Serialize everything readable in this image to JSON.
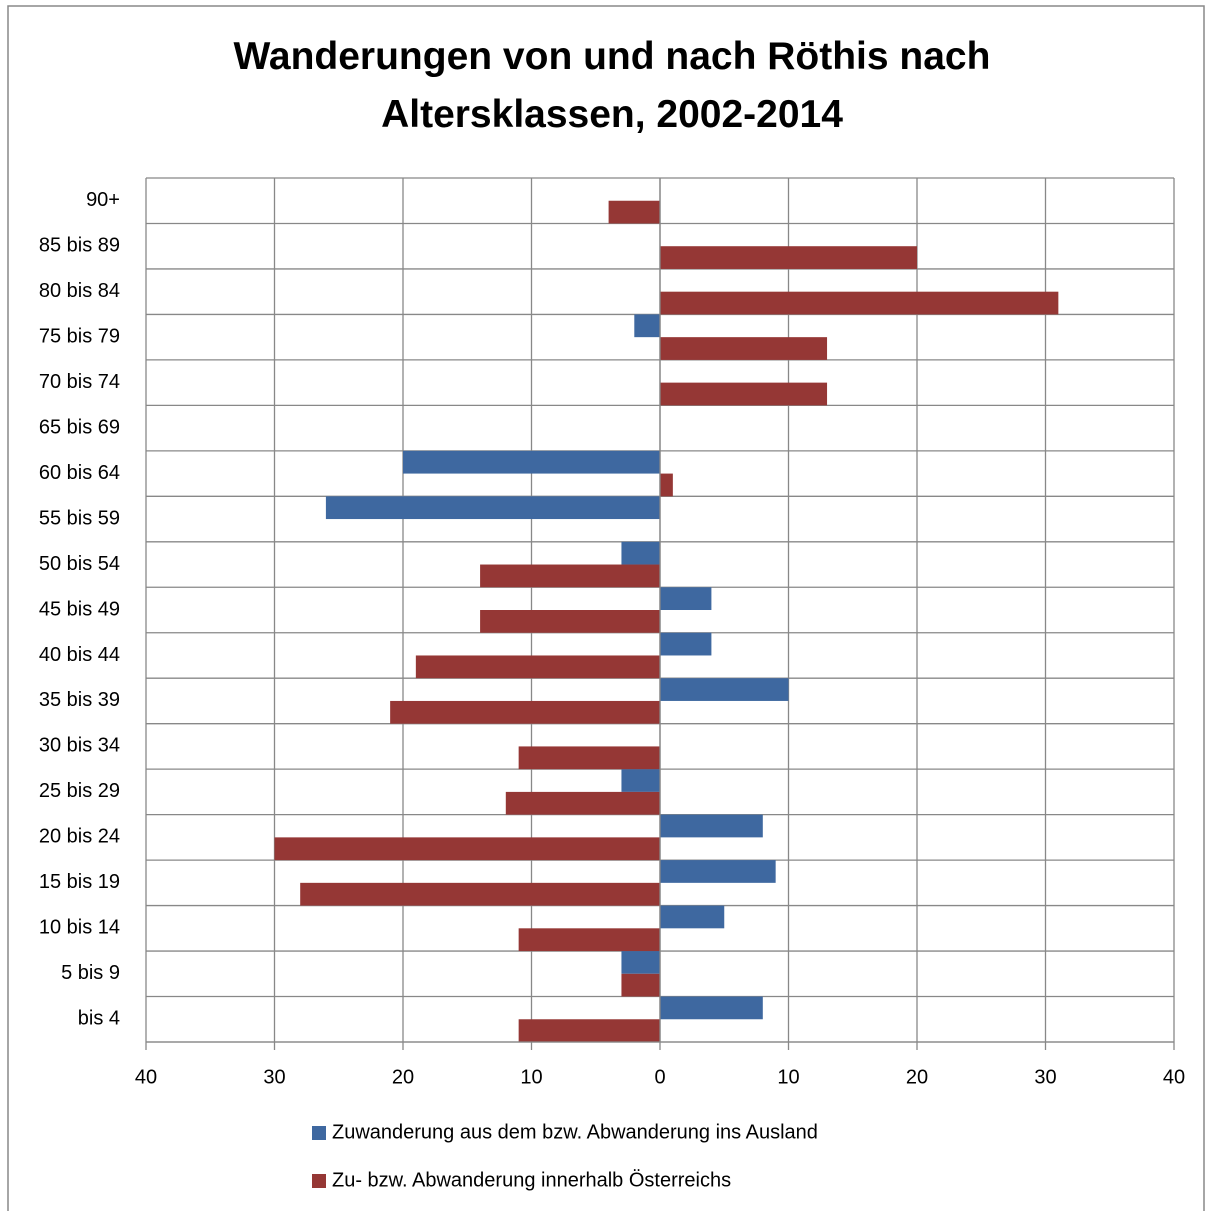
{
  "chart_data": {
    "type": "bar",
    "orientation": "horizontal",
    "title": "Wanderungen von und nach Röthis nach Altersklassen, 2002-2014",
    "categories": [
      "bis 4",
      "5 bis 9",
      "10 bis 14",
      "15 bis 19",
      "20 bis 24",
      "25 bis 29",
      "30 bis 34",
      "35 bis 39",
      "40 bis 44",
      "45 bis 49",
      "50 bis 54",
      "55 bis 59",
      "60 bis 64",
      "65 bis 69",
      "70 bis 74",
      "75 bis 79",
      "80 bis 84",
      "85 bis 89",
      "90+"
    ],
    "series": [
      {
        "name": "Zuwanderung aus dem bzw. Abwanderung ins Ausland",
        "color": "#3e68a0",
        "values": [
          8,
          -3,
          5,
          9,
          8,
          -3,
          0,
          10,
          4,
          4,
          -3,
          -26,
          -20,
          0,
          0,
          -2,
          0,
          0,
          0
        ]
      },
      {
        "name": "Zu- bzw. Abwanderung innerhalb Österreichs",
        "color": "#953735",
        "values": [
          -11,
          -3,
          -11,
          -28,
          -30,
          -12,
          -11,
          -21,
          -19,
          -14,
          -14,
          0,
          1,
          0,
          13,
          13,
          31,
          20,
          -4
        ]
      }
    ],
    "xlim": [
      -40,
      40
    ],
    "xticks": [
      {
        "value": -40,
        "label": "40"
      },
      {
        "value": -30,
        "label": "30"
      },
      {
        "value": -20,
        "label": "20"
      },
      {
        "value": -10,
        "label": "10"
      },
      0,
      10,
      20,
      30,
      40
    ],
    "grid": true,
    "legend": "bottom"
  }
}
